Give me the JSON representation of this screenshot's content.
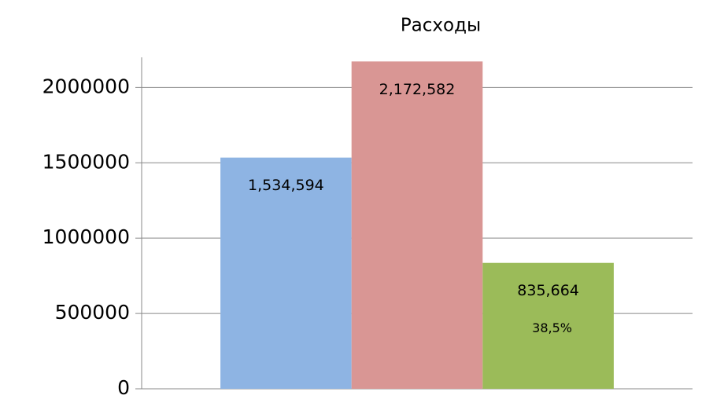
{
  "chart_data": {
    "type": "bar",
    "title": "Расходы",
    "categories": [
      null
    ],
    "series": [
      {
        "color": "#8eb4e3",
        "values": [
          1534594
        ],
        "value_labels": [
          "1,534,594"
        ]
      },
      {
        "color": "#d99694",
        "values": [
          2172582
        ],
        "value_labels": [
          "2,172,582"
        ]
      },
      {
        "color": "#9bbb59",
        "values": [
          835664
        ],
        "value_labels": [
          "835,664"
        ]
      }
    ],
    "annotations": [
      "38,5%"
    ],
    "ylim": [
      0,
      2200000
    ],
    "yticks": [
      0,
      500000,
      1000000,
      1500000,
      2000000
    ],
    "grid": true
  }
}
